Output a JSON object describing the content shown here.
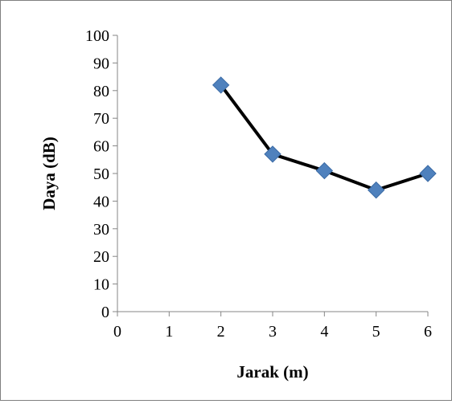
{
  "chart_data": {
    "type": "line",
    "title": "",
    "xlabel": "Jarak (m)",
    "ylabel": "Daya (dB)",
    "xlim": [
      0,
      6
    ],
    "ylim": [
      0,
      100
    ],
    "x_ticks": [
      "0",
      "1",
      "2",
      "3",
      "4",
      "5",
      "6"
    ],
    "y_ticks": [
      "0",
      "10",
      "20",
      "30",
      "40",
      "50",
      "60",
      "70",
      "80",
      "90",
      "100"
    ],
    "grid": false,
    "legend": "none",
    "series": [
      {
        "x": [
          2,
          3,
          4,
          5,
          6
        ],
        "y": [
          82,
          57,
          51,
          44,
          50
        ],
        "line_color": "#000000",
        "marker": "diamond",
        "marker_color": "#4f81bd"
      }
    ]
  }
}
